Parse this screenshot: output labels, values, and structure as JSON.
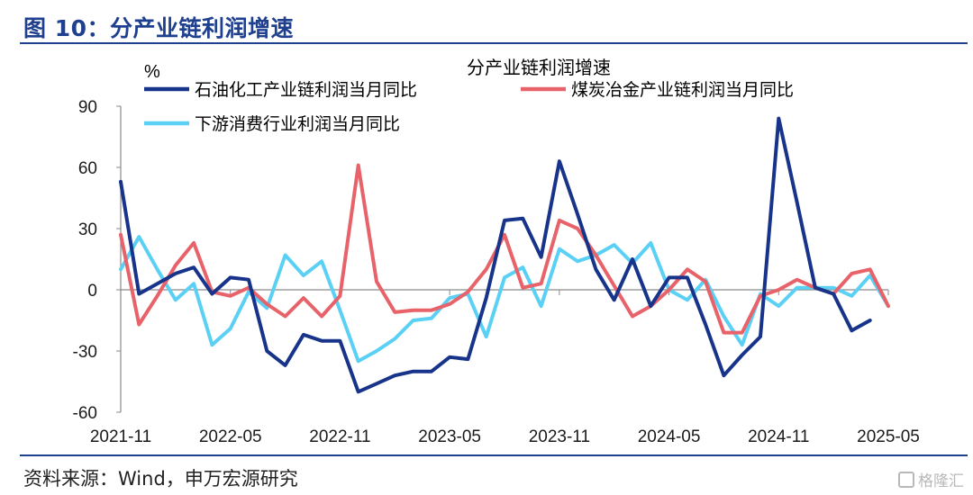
{
  "figure": {
    "title": "图 10：分产业链利润增速",
    "source": "资料来源：Wind，申万宏源研究",
    "watermark": "格隆汇"
  },
  "chart_data": {
    "type": "line",
    "title": "分产业链利润增速",
    "ylabel": "%",
    "xlabel": "",
    "ylim": [
      -60,
      90
    ],
    "yticks": [
      -60,
      -30,
      0,
      30,
      60,
      90
    ],
    "x": [
      "2021-11",
      "2021-12",
      "2022-01",
      "2022-02",
      "2022-03",
      "2022-04",
      "2022-05",
      "2022-06",
      "2022-07",
      "2022-08",
      "2022-09",
      "2022-10",
      "2022-11",
      "2022-12",
      "2023-01",
      "2023-02",
      "2023-03",
      "2023-04",
      "2023-05",
      "2023-06",
      "2023-07",
      "2023-08",
      "2023-09",
      "2023-10",
      "2023-11",
      "2023-12",
      "2024-01",
      "2024-02",
      "2024-03",
      "2024-04",
      "2024-05",
      "2024-06",
      "2024-07",
      "2024-08",
      "2024-09",
      "2024-10",
      "2024-11",
      "2024-12",
      "2025-01",
      "2025-02",
      "2025-03",
      "2025-04",
      "2025-05"
    ],
    "xticks": [
      "2021-11",
      "2022-05",
      "2022-11",
      "2023-05",
      "2023-11",
      "2024-05",
      "2024-11",
      "2025-05"
    ],
    "grid": false,
    "legend_position": "top",
    "series": [
      {
        "name": "石油化工产业链利润当月同比",
        "color": "#17338a",
        "values": [
          53,
          -2,
          3,
          8,
          11,
          -2,
          6,
          5,
          -30,
          -37,
          -22,
          -25,
          -25,
          -50,
          -46,
          -42,
          -40,
          -40,
          -33,
          -34,
          -4,
          34,
          35,
          16,
          63,
          37,
          10,
          -5,
          15,
          -8,
          6,
          6,
          -17,
          -42,
          -32,
          -23,
          84,
          43,
          1,
          -2,
          -20,
          -15,
          null
        ]
      },
      {
        "name": "煤炭冶金产业链利润当月同比",
        "color": "#e8626a",
        "values": [
          27,
          -17,
          -3,
          12,
          23,
          -1,
          -3,
          1,
          -7,
          -13,
          -4,
          -13,
          -3,
          61,
          4,
          -11,
          -10,
          -10,
          -7,
          -1,
          10,
          27,
          1,
          3,
          34,
          30,
          17,
          2,
          -13,
          -8,
          0,
          10,
          4,
          -21,
          -21,
          -3,
          0,
          5,
          1,
          -2,
          8,
          10,
          -8
        ]
      },
      {
        "name": "下游消费行业利润当月同比",
        "color": "#5bd0f5",
        "values": [
          10,
          26,
          10,
          -5,
          3,
          -27,
          -19,
          -1,
          -9,
          17,
          7,
          14,
          -10,
          -35,
          -30,
          -24,
          -15,
          -14,
          -4,
          -2,
          -23,
          6,
          11,
          -8,
          20,
          14,
          17,
          22,
          13,
          23,
          0,
          -5,
          5,
          -13,
          -27,
          -2,
          -8,
          1,
          1,
          1,
          -3,
          7,
          -8
        ]
      }
    ]
  }
}
